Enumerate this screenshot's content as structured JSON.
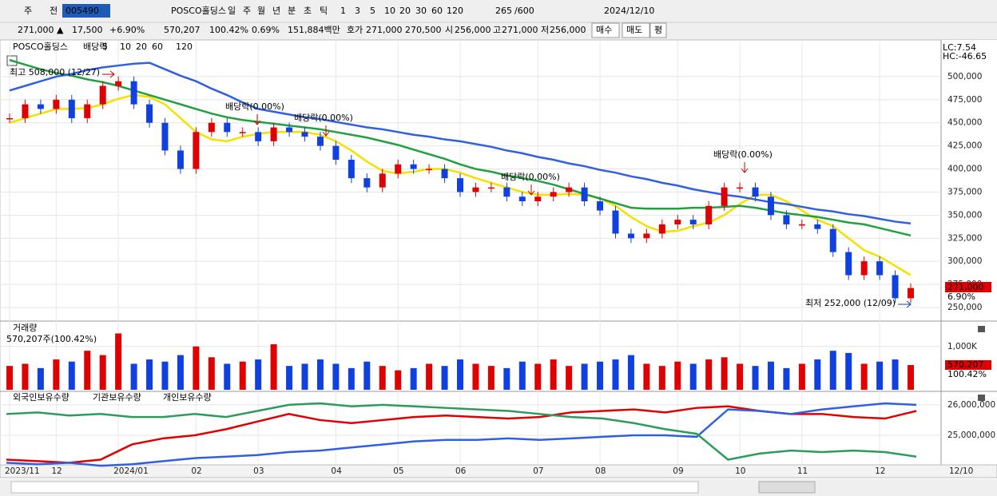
{
  "toolbar": {
    "row1": [
      "주",
      "전",
      "005490",
      "POSCO홀딩스",
      "일",
      "주",
      "월",
      "년",
      "분",
      "초",
      "틱",
      "1",
      "3",
      "5",
      "10",
      "20",
      "30",
      "60",
      "120",
      "265",
      "/600",
      "2024/12/10"
    ],
    "row2": [
      "271,000 ▲",
      "17,500",
      "+6.90%",
      "570,207",
      "100.42%",
      "0.69%",
      "151,884백만",
      "호가",
      "271,000",
      "270,500",
      "시",
      "256,000",
      "고",
      "271,000",
      "저",
      "256,000",
      "매수",
      "매도",
      "평"
    ]
  },
  "chart_data": [
    {
      "type": "candlestick",
      "title": "POSCO홀딩스",
      "legend": [
        "배당락",
        "5",
        "10",
        "20",
        "60",
        "120"
      ],
      "legend_colors": [
        "#c00000",
        "#e00000",
        "#f08000",
        "#e0c000",
        "#22a040",
        "#3060e0"
      ],
      "categories": [
        "2023/11",
        null,
        null,
        "12",
        null,
        null,
        null,
        "2024/01",
        null,
        null,
        null,
        null,
        "02",
        null,
        null,
        null,
        "03",
        null,
        null,
        null,
        null,
        "04",
        null,
        null,
        null,
        "05",
        null,
        null,
        null,
        "06",
        null,
        null,
        null,
        null,
        "07",
        null,
        null,
        null,
        "08",
        null,
        null,
        null,
        null,
        "09",
        null,
        null,
        null,
        "10",
        null,
        null,
        null,
        "11",
        null,
        null,
        null,
        null,
        "12",
        null,
        null
      ],
      "values": [
        455000,
        470000,
        465000,
        475000,
        455000,
        470000,
        490000,
        495000,
        470000,
        450000,
        420000,
        400000,
        440000,
        450000,
        440000,
        440000,
        430000,
        445000,
        440000,
        435000,
        425000,
        410000,
        390000,
        380000,
        395000,
        405000,
        400000,
        400000,
        390000,
        375000,
        380000,
        380000,
        370000,
        365000,
        370000,
        375000,
        380000,
        365000,
        355000,
        330000,
        325000,
        330000,
        340000,
        345000,
        340000,
        360000,
        380000,
        380000,
        370000,
        350000,
        340000,
        340000,
        335000,
        310000,
        285000,
        300000,
        285000,
        260000,
        271000
      ],
      "up_color": "#e00000",
      "down_color": "#1040e0",
      "series": [
        {
          "name": "20",
          "color": "#f5e000",
          "values": [
            450000,
            455000,
            460000,
            465000,
            465000,
            466000,
            470000,
            476000,
            480000,
            478000,
            470000,
            455000,
            440000,
            432000,
            430000,
            435000,
            438000,
            440000,
            440000,
            440000,
            437000,
            430000,
            420000,
            408000,
            398000,
            395000,
            397000,
            400000,
            400000,
            396000,
            390000,
            385000,
            380000,
            375000,
            372000,
            372000,
            373000,
            372000,
            368000,
            360000,
            348000,
            338000,
            332000,
            333000,
            338000,
            342000,
            350000,
            362000,
            372000,
            372000,
            365000,
            355000,
            345000,
            338000,
            325000,
            312000,
            305000,
            295000,
            285000
          ]
        },
        {
          "name": "60",
          "color": "#22a040",
          "values": [
            518000,
            513000,
            508000,
            504000,
            501000,
            497000,
            494000,
            490000,
            485000,
            480000,
            475000,
            470000,
            465000,
            460000,
            456000,
            453000,
            451000,
            449000,
            447000,
            445000,
            443000,
            440000,
            437000,
            434000,
            430000,
            426000,
            421000,
            416000,
            411000,
            405000,
            400000,
            397000,
            393000,
            390000,
            387000,
            383000,
            378000,
            373000,
            368000,
            363000,
            358000,
            357000,
            357000,
            357000,
            358000,
            358000,
            359000,
            360000,
            358000,
            355000,
            352000,
            350000,
            348000,
            345000,
            342000,
            340000,
            336000,
            332000,
            328000
          ]
        },
        {
          "name": "120",
          "color": "#3060e0",
          "values": [
            485000,
            490000,
            495000,
            500000,
            503000,
            507000,
            510000,
            512000,
            514000,
            515000,
            508000,
            501000,
            495000,
            487000,
            480000,
            472000,
            465000,
            462000,
            459000,
            456000,
            454000,
            451000,
            448000,
            445000,
            443000,
            440000,
            437000,
            435000,
            432000,
            430000,
            427000,
            424000,
            420000,
            417000,
            413000,
            410000,
            406000,
            403000,
            399000,
            396000,
            392000,
            389000,
            385000,
            382000,
            378000,
            375000,
            372000,
            370000,
            367000,
            364000,
            362000,
            359000,
            356000,
            354000,
            351000,
            349000,
            346000,
            343000,
            341000
          ]
        }
      ],
      "ylim": [
        237000,
        538000
      ],
      "yticks": [
        {
          "value": 250000,
          "label": "250,000"
        },
        {
          "value": 275000,
          "label": "275,000"
        },
        {
          "value": 300000,
          "label": "300,000"
        },
        {
          "value": 325000,
          "label": "325,000"
        },
        {
          "value": 350000,
          "label": "350,000"
        },
        {
          "value": 375000,
          "label": "375,000"
        },
        {
          "value": 400000,
          "label": "400,000"
        },
        {
          "value": 425000,
          "label": "425,000"
        },
        {
          "value": 450000,
          "label": "450,000"
        },
        {
          "value": 475000,
          "label": "475,000"
        },
        {
          "value": 500000,
          "label": "500,000"
        }
      ],
      "annotations": [
        "최고 508,000 (12/27)",
        "최저 252,000 (12/09)",
        "배당락(0.00%)",
        "배당락(0.00%)",
        "배당락(0.00%)",
        "배당락(0.00%)"
      ],
      "last_label": "271,000",
      "last_change": "6.90%",
      "lc": "LC:7.54",
      "hc": "HC:-46.65",
      "cursor_date": "12/10"
    },
    {
      "type": "bar",
      "title": "거래량",
      "subtitle": "570,207주(100.42%)",
      "values": [
        550000,
        600000,
        500000,
        700000,
        650000,
        900000,
        800000,
        1300000,
        600000,
        700000,
        650000,
        800000,
        1000000,
        750000,
        600000,
        650000,
        700000,
        1050000,
        550000,
        600000,
        700000,
        600000,
        500000,
        650000,
        550000,
        450000,
        500000,
        600000,
        550000,
        700000,
        600000,
        550000,
        500000,
        650000,
        600000,
        700000,
        550000,
        600000,
        650000,
        700000,
        800000,
        600000,
        550000,
        650000,
        600000,
        700000,
        750000,
        600000,
        550000,
        650000,
        500000,
        600000,
        700000,
        900000,
        850000,
        600000,
        650000,
        700000,
        570207
      ],
      "ylim": [
        0,
        1530000
      ],
      "yticks": [
        {
          "value": 1000000,
          "label": "1,000K"
        }
      ],
      "last_label": "570,207",
      "last_change": "100.42%"
    },
    {
      "type": "line",
      "series": [
        {
          "name": "외국인보유수량",
          "color": "#e00000",
          "values": [
            24200000,
            24150000,
            24100000,
            24200000,
            24700000,
            24900000,
            25000000,
            25200000,
            25450000,
            25700000,
            25500000,
            25400000,
            25500000,
            25600000,
            25650000,
            25600000,
            25550000,
            25600000,
            25750000,
            25800000,
            25850000,
            25750000,
            25900000,
            25950000,
            25800000,
            25700000,
            25700000,
            25600000,
            25550000,
            25800000
          ]
        },
        {
          "name": "기관보유수량",
          "color": "#3060e0",
          "values": [
            24100000,
            24050000,
            24100000,
            24000000,
            24050000,
            24150000,
            24250000,
            24300000,
            24350000,
            24450000,
            24500000,
            24600000,
            24700000,
            24800000,
            24850000,
            24850000,
            24900000,
            24850000,
            24900000,
            24950000,
            25000000,
            25000000,
            24950000,
            25850000,
            25800000,
            25700000,
            25850000,
            25950000,
            26050000,
            26000000
          ]
        },
        {
          "name": "개인보유수량",
          "color": "#2e9a5e",
          "values": [
            25700000,
            25750000,
            25650000,
            25700000,
            25600000,
            25600000,
            25700000,
            25600000,
            25800000,
            26000000,
            26050000,
            25950000,
            26000000,
            25950000,
            25900000,
            25850000,
            25800000,
            25700000,
            25600000,
            25550000,
            25400000,
            25200000,
            25050000,
            24200000,
            24400000,
            24500000,
            24450000,
            24500000,
            24450000,
            24300000
          ]
        }
      ],
      "ylim": [
        24030000,
        26390000
      ],
      "yticks": [
        {
          "value": 25000000,
          "label": "25,000,000"
        },
        {
          "value": 26000000,
          "label": "26,000,000"
        }
      ]
    }
  ]
}
